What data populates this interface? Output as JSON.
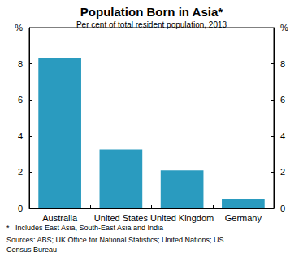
{
  "chart_data": {
    "type": "bar",
    "title": "Population Born in Asia*",
    "subtitle": "Per cent of total resident population, 2013",
    "categories": [
      "Australia",
      "United States",
      "United Kingdom",
      "Germany"
    ],
    "values": [
      8.3,
      3.25,
      2.1,
      0.5
    ],
    "color": "#2a9bbf",
    "ylim": [
      0,
      10
    ],
    "yticks": [
      0,
      2,
      4,
      6,
      8,
      {
        "value": 10,
        "label": "%"
      }
    ],
    "grid": false,
    "footnote": "*   Includes East Asia, South-East Asia and India",
    "source": "Sources: ABS; UK Office for National Statistics; United Nations; US Census Bureau"
  }
}
